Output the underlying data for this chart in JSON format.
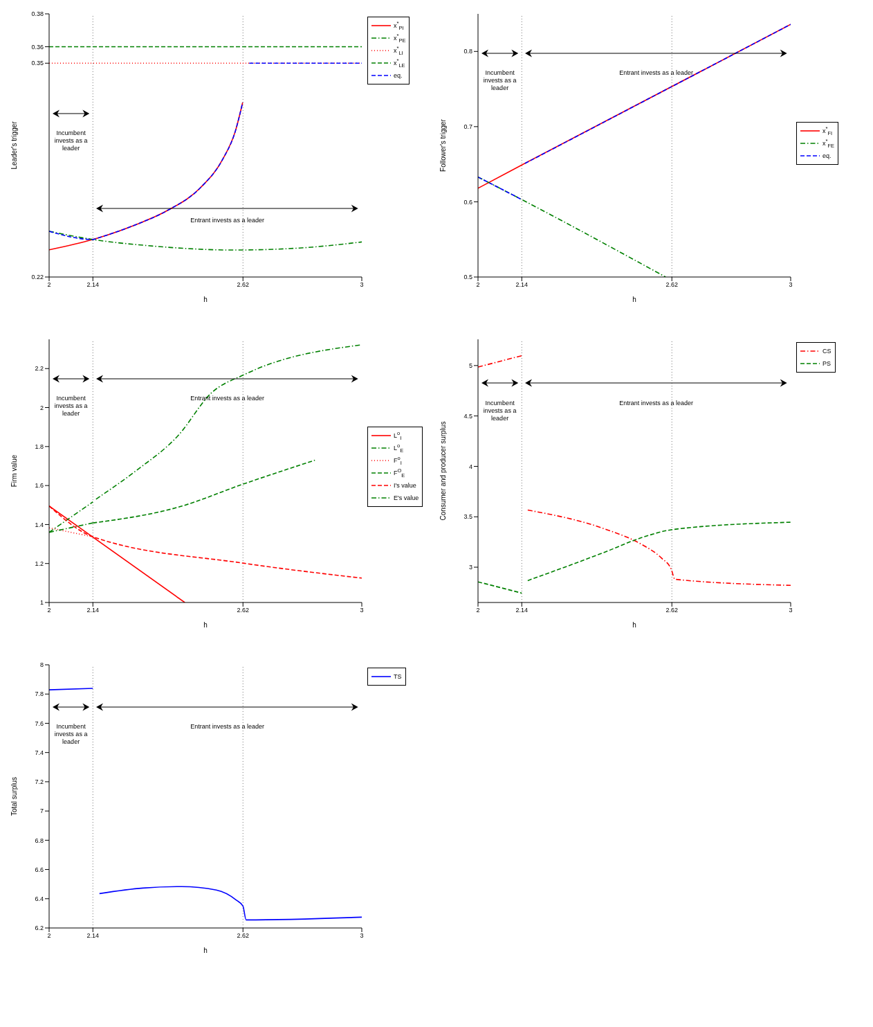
{
  "chart_data": [
    {
      "type": "line",
      "xlabel": "h",
      "ylabel": "Leader's trigger",
      "xlim": [
        2,
        3
      ],
      "ylim": [
        0.22,
        0.38
      ],
      "xticks": [
        2,
        2.14,
        2.62,
        3
      ],
      "yticks": [
        0.22,
        0.35,
        0.36,
        0.38
      ],
      "legend": "top right",
      "ref_lines": [
        {
          "axis": "x",
          "value": 2.14,
          "color": "#777777",
          "line_style": "dotted"
        },
        {
          "axis": "x",
          "value": 2.62,
          "color": "#777777",
          "line_style": "dotted"
        }
      ],
      "annotations": [
        "Incumbent invests as a leader",
        "Entrant invests as a leader"
      ],
      "series": [
        {
          "name": "x$^{*}$$_{PI}$",
          "color": "#ff0000",
          "line_style": "solid",
          "x": [
            2,
            2.14,
            2.154,
            2.273,
            2.378,
            2.484,
            2.554,
            2.596,
            2.619
          ],
          "values": [
            0.2365,
            0.2428,
            0.2436,
            0.2515,
            0.2604,
            0.2743,
            0.2912,
            0.3089,
            0.3261
          ]
        },
        {
          "name": "x$^{*}$$_{PE}$",
          "color": "#008000",
          "line_style": "dashdot",
          "x": [
            2,
            2.14,
            2.315,
            2.59,
            2.799,
            3
          ],
          "values": [
            0.2478,
            0.2428,
            0.2391,
            0.2364,
            0.2376,
            0.2413
          ]
        },
        {
          "name": "x$^{*}$$_{LI}$",
          "color": "#ff0000",
          "line_style": "dotted",
          "x": [
            2,
            3
          ],
          "values": [
            0.35,
            0.35
          ]
        },
        {
          "name": "x$^{*}$$_{LE}$",
          "color": "#008000",
          "line_style": "dashed",
          "x": [
            2,
            3
          ],
          "values": [
            0.36,
            0.36
          ]
        },
        {
          "name": "eq.",
          "color": "#0000ff",
          "line_style": "dashed",
          "x": [
            2,
            2.14,
            2.154,
            2.273,
            2.378,
            2.484,
            2.554,
            2.596,
            2.619,
            2.63,
            2.64,
            3
          ],
          "values": [
            0.2478,
            0.2428,
            0.2436,
            0.2515,
            0.2604,
            0.2743,
            0.2912,
            0.3089,
            0.3261,
            null,
            0.35,
            0.35
          ]
        }
      ]
    },
    {
      "type": "line",
      "xlabel": "h",
      "ylabel": "Follower's trigger",
      "xlim": [
        2,
        3
      ],
      "ylim": [
        0.5,
        0.85
      ],
      "xticks": [
        2,
        2.14,
        2.62,
        3
      ],
      "yticks": [
        0.5,
        0.6,
        0.7,
        0.8
      ],
      "legend": "right",
      "ref_lines": [
        {
          "axis": "x",
          "value": 2.14,
          "color": "#777777",
          "line_style": "dotted"
        },
        {
          "axis": "x",
          "value": 2.62,
          "color": "#777777",
          "line_style": "dotted"
        }
      ],
      "annotations": [
        "Incumbent invests as a leader",
        "Entrant invests as a leader"
      ],
      "series": [
        {
          "name": "x$^{*}$$_{FI}$",
          "color": "#ff0000",
          "line_style": "solid",
          "x": [
            2,
            2.14,
            3
          ],
          "values": [
            0.618,
            0.649,
            0.836
          ]
        },
        {
          "name": "x$^{*}$$_{FE}$",
          "color": "#008000",
          "line_style": "dashdot",
          "x": [
            2,
            2.14,
            2.6
          ],
          "values": [
            0.633,
            0.603,
            0.5
          ]
        },
        {
          "name": "eq.",
          "color": "#0000ff",
          "line_style": "dashed",
          "x": [
            2,
            2.14,
            2.145,
            2.15,
            3
          ],
          "values": [
            0.633,
            0.603,
            null,
            0.651,
            0.836
          ]
        }
      ]
    },
    {
      "type": "line",
      "xlabel": "h",
      "ylabel": "Firm value",
      "xlim": [
        2,
        3
      ],
      "ylim": [
        1,
        2.35
      ],
      "xticks": [
        2,
        2.14,
        2.62,
        3
      ],
      "yticks": [
        1,
        1.2,
        1.4,
        1.6,
        1.8,
        2,
        2.2
      ],
      "legend": "right",
      "ref_lines": [
        {
          "axis": "x",
          "value": 2.14,
          "color": "#777777",
          "line_style": "dotted"
        },
        {
          "axis": "x",
          "value": 2.62,
          "color": "#777777",
          "line_style": "dotted"
        }
      ],
      "annotations": [
        "Incumbent invests as a leader",
        "Entrant invests as a leader"
      ],
      "series": [
        {
          "name": "L$^{o}$$_{I}$",
          "color": "#ff0000",
          "line_style": "solid",
          "x": [
            2,
            2.434
          ],
          "values": [
            1.495,
            1
          ]
        },
        {
          "name": "L$^{o}$$_{E}$",
          "color": "#008000",
          "line_style": "dashdot",
          "x": [
            2,
            2.14
          ],
          "values": [
            1.36,
            1.516
          ]
        },
        {
          "name": "F$^{o}$$_{I}$",
          "color": "#ff0000",
          "line_style": "dotted",
          "x": [
            2,
            2.14
          ],
          "values": [
            1.383,
            1.337
          ]
        },
        {
          "name": "F$^{O}$$_{E}$",
          "color": "#008000",
          "line_style": "dashed",
          "x": [
            2.14,
            2.413,
            2.62,
            2.85
          ],
          "values": [
            1.408,
            1.489,
            1.607,
            1.73
          ]
        },
        {
          "name": "I's value",
          "color": "#ff0000",
          "line_style": "dashed",
          "x": [
            2,
            2.14,
            2.62,
            3
          ],
          "values": [
            1.495,
            1.337,
            1.202,
            1.125
          ]
        },
        {
          "name": "E's value",
          "color": "#008000",
          "line_style": "dashdot",
          "x": [
            2,
            2.14,
            2.145,
            2.15,
            2.273,
            2.413,
            2.519,
            2.627,
            3
          ],
          "values": [
            1.36,
            1.408,
            null,
            1.53,
            1.67,
            1.857,
            2.075,
            2.171,
            2.322
          ]
        }
      ]
    },
    {
      "type": "line",
      "xlabel": "h",
      "ylabel": "Consumer and producer surplus",
      "xlim": [
        2,
        3
      ],
      "ylim": [
        2.65,
        5.26
      ],
      "xticks": [
        2,
        2.14,
        2.62,
        3
      ],
      "yticks": [
        3,
        3.5,
        4,
        4.5,
        5
      ],
      "legend": "top right",
      "ref_lines": [
        {
          "axis": "x",
          "value": 2.14,
          "color": "#777777",
          "line_style": "dotted"
        },
        {
          "axis": "x",
          "value": 2.62,
          "color": "#777777",
          "line_style": "dotted"
        }
      ],
      "annotations": [
        "Incumbent invests as a leader",
        "Entrant invests as a leader"
      ],
      "series": [
        {
          "name": "CS",
          "color": "#ff0000",
          "line_style": "dashdot",
          "x": [
            2,
            2.14,
            2.15,
            2.159,
            2.414,
            2.521,
            2.587,
            2.618,
            2.63,
            3
          ],
          "values": [
            4.985,
            5.098,
            null,
            3.567,
            3.37,
            3.23,
            3.09,
            2.98,
            2.88,
            2.82
          ]
        },
        {
          "name": "PS",
          "color": "#008000",
          "line_style": "dashed",
          "x": [
            2,
            2.14,
            2.15,
            2.159,
            2.414,
            2.52,
            2.627,
            3
          ],
          "values": [
            2.855,
            2.743,
            null,
            2.867,
            3.16,
            3.29,
            3.375,
            3.446
          ]
        }
      ]
    },
    {
      "type": "line",
      "xlabel": "h",
      "ylabel": "Total surplus",
      "xlim": [
        2,
        3
      ],
      "ylim": [
        6.2,
        8
      ],
      "xticks": [
        2,
        2.14,
        2.62,
        3
      ],
      "yticks": [
        6.2,
        6.4,
        6.6,
        6.8,
        7,
        7.2,
        7.4,
        7.6,
        7.8,
        8
      ],
      "legend": "top right",
      "ref_lines": [
        {
          "axis": "x",
          "value": 2.14,
          "color": "#777777",
          "line_style": "dotted"
        },
        {
          "axis": "x",
          "value": 2.62,
          "color": "#777777",
          "line_style": "dotted"
        }
      ],
      "annotations": [
        "Incumbent invests as a leader",
        "Entrant invests as a leader"
      ],
      "series": [
        {
          "name": "TS",
          "color": "#0000ff",
          "line_style": "solid",
          "x": [
            2,
            2.14,
            2.15,
            2.161,
            2.3,
            2.423,
            2.535,
            2.599,
            2.62,
            2.63,
            3
          ],
          "values": [
            7.829,
            7.839,
            null,
            6.435,
            6.473,
            6.483,
            6.459,
            6.39,
            6.35,
            6.255,
            6.274
          ]
        }
      ]
    }
  ]
}
